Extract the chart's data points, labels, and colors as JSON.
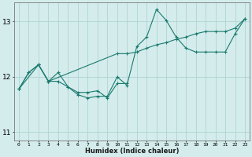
{
  "xlabel": "Humidex (Indice chaleur)",
  "bg_color": "#d4ecec",
  "grid_color": "#b0d4d4",
  "line_color": "#1a7a6e",
  "xlim": [
    -0.5,
    23.5
  ],
  "ylim": [
    10.85,
    13.35
  ],
  "yticks": [
    11,
    12,
    13
  ],
  "series1_x": [
    0,
    1,
    2,
    3,
    4,
    5,
    6,
    7,
    8,
    9,
    10,
    11,
    12,
    13,
    14,
    15,
    16,
    17,
    18,
    19,
    20,
    21,
    22,
    23
  ],
  "series1_y": [
    11.78,
    12.08,
    12.22,
    11.92,
    11.92,
    11.82,
    11.68,
    11.62,
    11.65,
    11.65,
    12.0,
    11.85,
    12.55,
    12.72,
    13.22,
    13.02,
    12.72,
    12.52,
    12.45,
    12.45,
    12.45,
    12.45,
    12.78,
    13.05
  ],
  "series2_x": [
    0,
    1,
    2,
    3,
    10,
    11,
    12,
    13,
    14,
    15,
    16,
    17,
    18,
    19,
    20,
    21,
    22,
    23
  ],
  "series2_y": [
    11.78,
    12.08,
    12.22,
    11.92,
    12.42,
    12.42,
    12.45,
    12.52,
    12.58,
    12.62,
    12.68,
    12.72,
    12.78,
    12.82,
    12.82,
    12.82,
    12.88,
    13.05
  ],
  "series3_x": [
    0,
    2,
    3,
    4,
    5,
    6,
    7,
    8,
    9,
    10,
    11
  ],
  "series3_y": [
    11.78,
    12.22,
    11.92,
    12.08,
    11.82,
    11.72,
    11.72,
    11.75,
    11.62,
    11.88,
    11.88
  ]
}
